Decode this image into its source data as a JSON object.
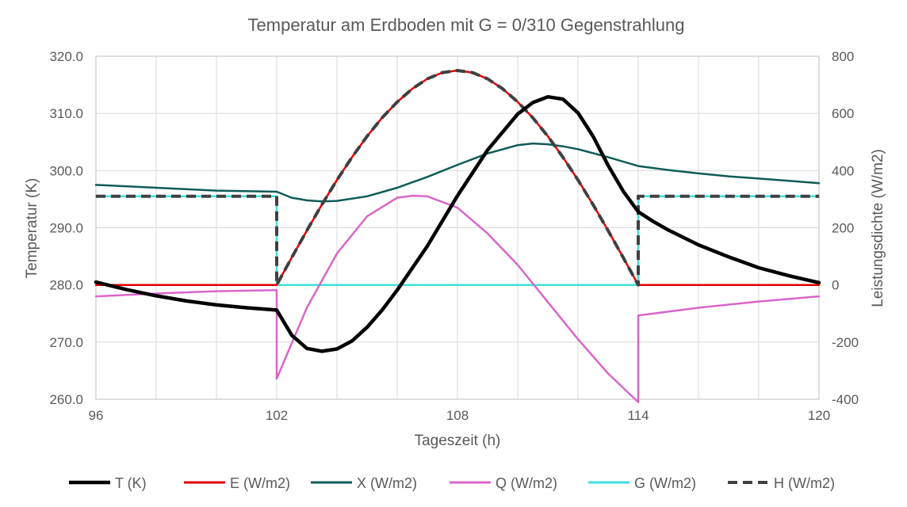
{
  "chart_data": {
    "type": "line",
    "title": "Temperatur am Erdboden mit G = 0/310 Gegenstrahlung",
    "xlabel": "Tageszeit (h)",
    "ylabel": "Temperatur (K)",
    "y2label": "Leistungsdichte  (W/m2)",
    "xlim": [
      96,
      120
    ],
    "ylim": [
      260,
      320
    ],
    "y2lim": [
      -400,
      800
    ],
    "xticks": [
      "96",
      "102",
      "108",
      "114",
      "120"
    ],
    "xtick_values": [
      96,
      102,
      108,
      114,
      120
    ],
    "yticks": [
      "320.0",
      "310.0",
      "300.0",
      "290.0",
      "280.0",
      "270.0",
      "260.0"
    ],
    "ytick_values": [
      320,
      310,
      300,
      290,
      280,
      270,
      260
    ],
    "y2ticks": [
      "800",
      "600",
      "400",
      "200",
      "0",
      "-200",
      "-400"
    ],
    "y2tick_values": [
      800,
      600,
      400,
      200,
      0,
      -200,
      -400
    ],
    "grid": true,
    "legend_position": "bottom",
    "series": [
      {
        "name": "T (K)",
        "axis": "left",
        "color": "#000000",
        "dash": false,
        "x": [
          96,
          97,
          98,
          99,
          100,
          101,
          102,
          102.5,
          103,
          103.5,
          104,
          104.5,
          105,
          105.5,
          106,
          107,
          108,
          109,
          110,
          110.5,
          111,
          111.5,
          112,
          112.5,
          113,
          113.5,
          114,
          114.5,
          115,
          116,
          117,
          118,
          119,
          120
        ],
        "y": [
          280.5,
          279.2,
          278.1,
          277.2,
          276.5,
          276.0,
          275.6,
          271.2,
          268.9,
          268.4,
          268.8,
          270.2,
          272.6,
          275.6,
          279.1,
          286.8,
          295.6,
          303.6,
          309.9,
          311.9,
          312.9,
          312.5,
          310.1,
          306.0,
          300.9,
          296.4,
          292.8,
          291.1,
          289.6,
          287.0,
          284.9,
          283.0,
          281.6,
          280.4
        ]
      },
      {
        "name": "E (W/m2)",
        "axis": "right",
        "color": "#e00000",
        "dash": false,
        "x": [
          96,
          102,
          102.5,
          103,
          103.5,
          104,
          104.5,
          105,
          105.5,
          106,
          106.5,
          107,
          107.5,
          108,
          108.5,
          109,
          109.5,
          110,
          110.5,
          111,
          111.5,
          112,
          112.5,
          113,
          113.5,
          114,
          120
        ],
        "y": [
          0,
          0,
          96,
          190,
          281,
          367,
          447,
          520,
          585,
          640,
          686,
          721,
          743,
          750,
          743,
          721,
          686,
          640,
          585,
          520,
          447,
          367,
          281,
          190,
          96,
          0,
          0
        ]
      },
      {
        "name": "X (W/m2)",
        "axis": "right",
        "color": "#0e5c57",
        "dash": false,
        "x": [
          96,
          98,
          100,
          102,
          102.5,
          103,
          103.5,
          104,
          105,
          106,
          107,
          108,
          109,
          110,
          110.5,
          111,
          111.5,
          112,
          113,
          114,
          115,
          116,
          117,
          118,
          119,
          120
        ],
        "y": [
          350,
          340,
          330,
          326,
          305,
          296,
          292,
          294,
          310,
          340,
          378,
          420,
          460,
          489,
          495,
          492,
          485,
          475,
          447,
          416,
          402,
          390,
          380,
          372,
          364,
          356
        ]
      },
      {
        "name": "Q (W/m2)",
        "axis": "right",
        "color": "#d966c9",
        "dash": false,
        "x": [
          96,
          98,
          100,
          102,
          102.001,
          103,
          104,
          105,
          106,
          106.5,
          107,
          108,
          109,
          110,
          111,
          112,
          113,
          114,
          114.001,
          116,
          118,
          120
        ],
        "y": [
          -40,
          -30,
          -22,
          -18,
          -328,
          -80,
          110,
          240,
          305,
          312,
          310,
          270,
          180,
          70,
          -60,
          -190,
          -310,
          -410,
          -107,
          -80,
          -58,
          -40
        ]
      },
      {
        "name": "G (W/m2)",
        "axis": "right",
        "color": "#3ee0dc",
        "dash": false,
        "x": [
          96,
          102,
          102,
          114,
          114,
          120
        ],
        "y": [
          310,
          310,
          0,
          0,
          310,
          310
        ]
      },
      {
        "name": "H (W/m2)",
        "axis": "right",
        "color": "#404040",
        "dash": true,
        "x": [
          96,
          102,
          102,
          102.5,
          103,
          103.5,
          104,
          104.5,
          105,
          105.5,
          106,
          106.5,
          107,
          107.5,
          108,
          108.5,
          109,
          109.5,
          110,
          110.5,
          111,
          111.5,
          112,
          112.5,
          113,
          113.5,
          114,
          114,
          120
        ],
        "y": [
          310,
          310,
          0,
          96,
          190,
          281,
          367,
          447,
          520,
          585,
          640,
          686,
          721,
          743,
          750,
          743,
          721,
          686,
          640,
          585,
          520,
          447,
          367,
          281,
          190,
          96,
          0,
          310,
          310
        ]
      }
    ]
  }
}
